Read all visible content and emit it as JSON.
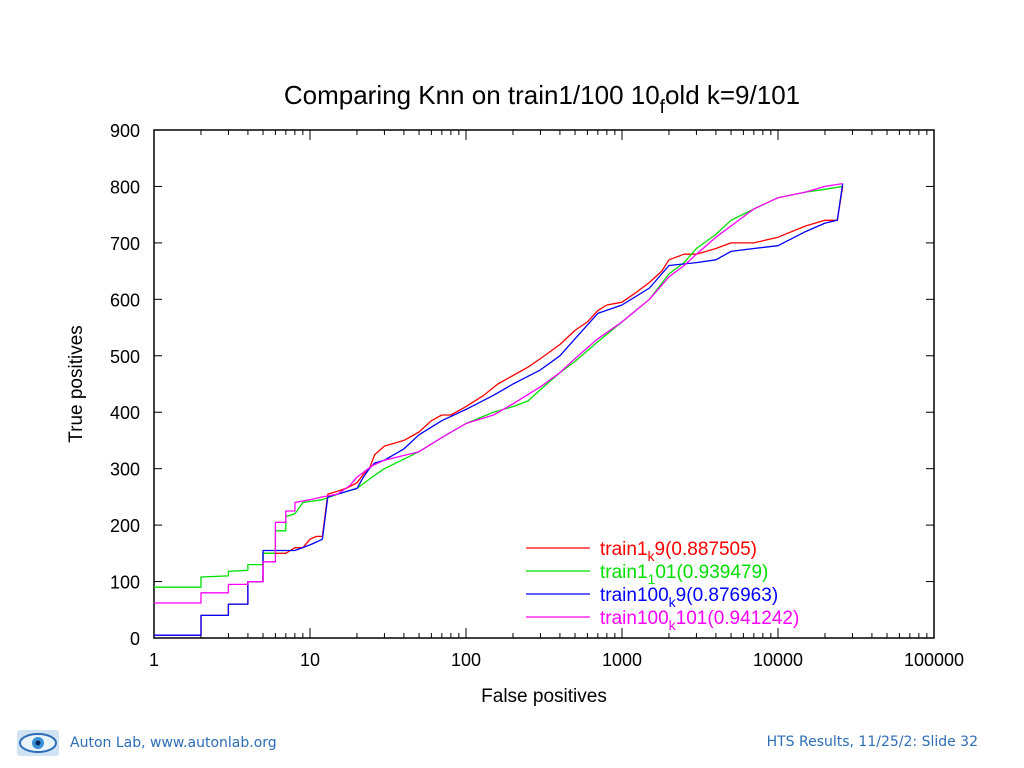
{
  "chart_data": {
    "type": "line",
    "title": {
      "main": "Comparing Knn on train1/100 10",
      "sub": "f",
      "tail": "old k=9/101"
    },
    "xlabel": "False positives",
    "ylabel": "True positives",
    "xscale": "log",
    "xlim": [
      1,
      100000
    ],
    "ylim": [
      0,
      900
    ],
    "xticks": [
      "1",
      "10",
      "100",
      "1000",
      "10000",
      "100000"
    ],
    "yticks": [
      "0",
      "100",
      "200",
      "300",
      "400",
      "500",
      "600",
      "700",
      "800",
      "900"
    ],
    "legend_position": "bottom-right",
    "series": [
      {
        "name": "train1_k9(0.887505)",
        "label": {
          "main": "train1",
          "sub": "k",
          "tail": "9(0.887505)"
        },
        "color": "#ff0000",
        "points": [
          [
            1,
            5
          ],
          [
            2,
            5
          ],
          [
            2,
            40
          ],
          [
            3,
            40
          ],
          [
            3,
            60
          ],
          [
            4,
            60
          ],
          [
            4,
            100
          ],
          [
            5,
            100
          ],
          [
            5,
            150
          ],
          [
            7,
            150
          ],
          [
            8,
            160
          ],
          [
            9,
            160
          ],
          [
            10,
            175
          ],
          [
            11,
            180
          ],
          [
            12,
            180
          ],
          [
            13,
            255
          ],
          [
            15,
            260
          ],
          [
            17,
            265
          ],
          [
            20,
            275
          ],
          [
            22,
            290
          ],
          [
            24,
            300
          ],
          [
            26,
            325
          ],
          [
            30,
            340
          ],
          [
            40,
            350
          ],
          [
            50,
            365
          ],
          [
            60,
            385
          ],
          [
            70,
            395
          ],
          [
            80,
            395
          ],
          [
            100,
            410
          ],
          [
            130,
            430
          ],
          [
            160,
            450
          ],
          [
            200,
            465
          ],
          [
            250,
            480
          ],
          [
            300,
            495
          ],
          [
            400,
            520
          ],
          [
            500,
            545
          ],
          [
            600,
            560
          ],
          [
            700,
            580
          ],
          [
            800,
            590
          ],
          [
            1000,
            595
          ],
          [
            1200,
            610
          ],
          [
            1500,
            630
          ],
          [
            1800,
            650
          ],
          [
            2000,
            670
          ],
          [
            2500,
            680
          ],
          [
            3000,
            680
          ],
          [
            4000,
            690
          ],
          [
            5000,
            700
          ],
          [
            7000,
            700
          ],
          [
            10000,
            710
          ],
          [
            15000,
            730
          ],
          [
            20000,
            740
          ],
          [
            24000,
            740
          ],
          [
            26000,
            800
          ]
        ]
      },
      {
        "name": "train1_1 01(0.939479)",
        "label": {
          "main": "train1",
          "sub": "1",
          "tail": "01(0.939479)"
        },
        "color": "#00e000",
        "points": [
          [
            1,
            90
          ],
          [
            2,
            90
          ],
          [
            2,
            108
          ],
          [
            3,
            110
          ],
          [
            3,
            118
          ],
          [
            4,
            120
          ],
          [
            4,
            130
          ],
          [
            5,
            130
          ],
          [
            5,
            150
          ],
          [
            6,
            150
          ],
          [
            6,
            190
          ],
          [
            7,
            190
          ],
          [
            7,
            215
          ],
          [
            8,
            220
          ],
          [
            9,
            240
          ],
          [
            12,
            245
          ],
          [
            15,
            255
          ],
          [
            20,
            265
          ],
          [
            25,
            285
          ],
          [
            30,
            300
          ],
          [
            50,
            330
          ],
          [
            70,
            355
          ],
          [
            100,
            380
          ],
          [
            150,
            400
          ],
          [
            200,
            410
          ],
          [
            250,
            420
          ],
          [
            300,
            440
          ],
          [
            400,
            470
          ],
          [
            500,
            490
          ],
          [
            700,
            525
          ],
          [
            1000,
            560
          ],
          [
            1500,
            600
          ],
          [
            2000,
            645
          ],
          [
            2500,
            665
          ],
          [
            3000,
            690
          ],
          [
            4000,
            715
          ],
          [
            5000,
            740
          ],
          [
            7000,
            760
          ],
          [
            10000,
            780
          ],
          [
            15000,
            790
          ],
          [
            20000,
            795
          ],
          [
            26000,
            800
          ]
        ]
      },
      {
        "name": "train100_k9(0.876963)",
        "label": {
          "main": "train100",
          "sub": "k",
          "tail": "9(0.876963)"
        },
        "color": "#0000ff",
        "points": [
          [
            1,
            5
          ],
          [
            2,
            5
          ],
          [
            2,
            40
          ],
          [
            3,
            40
          ],
          [
            3,
            60
          ],
          [
            4,
            60
          ],
          [
            4,
            100
          ],
          [
            5,
            100
          ],
          [
            5,
            155
          ],
          [
            7,
            155
          ],
          [
            8,
            155
          ],
          [
            10,
            165
          ],
          [
            11,
            170
          ],
          [
            12,
            175
          ],
          [
            13,
            250
          ],
          [
            15,
            255
          ],
          [
            20,
            265
          ],
          [
            22,
            285
          ],
          [
            24,
            300
          ],
          [
            26,
            310
          ],
          [
            30,
            315
          ],
          [
            40,
            335
          ],
          [
            50,
            360
          ],
          [
            70,
            385
          ],
          [
            100,
            405
          ],
          [
            150,
            430
          ],
          [
            200,
            450
          ],
          [
            300,
            475
          ],
          [
            400,
            500
          ],
          [
            500,
            530
          ],
          [
            700,
            575
          ],
          [
            1000,
            590
          ],
          [
            1500,
            620
          ],
          [
            2000,
            660
          ],
          [
            3000,
            665
          ],
          [
            4000,
            670
          ],
          [
            5000,
            685
          ],
          [
            7000,
            690
          ],
          [
            10000,
            695
          ],
          [
            15000,
            720
          ],
          [
            20000,
            735
          ],
          [
            24000,
            740
          ],
          [
            26000,
            805
          ]
        ]
      },
      {
        "name": "train100_k101(0.941242)",
        "label": {
          "main": "train100",
          "sub": "k",
          "tail": "101(0.941242)"
        },
        "color": "#ff00ff",
        "points": [
          [
            1,
            62
          ],
          [
            2,
            62
          ],
          [
            2,
            80
          ],
          [
            3,
            80
          ],
          [
            3,
            95
          ],
          [
            4,
            95
          ],
          [
            4,
            100
          ],
          [
            5,
            100
          ],
          [
            5,
            135
          ],
          [
            6,
            135
          ],
          [
            6,
            205
          ],
          [
            7,
            205
          ],
          [
            7,
            225
          ],
          [
            8,
            225
          ],
          [
            8,
            240
          ],
          [
            10,
            245
          ],
          [
            12,
            250
          ],
          [
            15,
            255
          ],
          [
            18,
            270
          ],
          [
            20,
            285
          ],
          [
            25,
            305
          ],
          [
            30,
            315
          ],
          [
            50,
            330
          ],
          [
            70,
            355
          ],
          [
            100,
            380
          ],
          [
            150,
            395
          ],
          [
            200,
            415
          ],
          [
            300,
            445
          ],
          [
            400,
            470
          ],
          [
            500,
            495
          ],
          [
            700,
            530
          ],
          [
            1000,
            560
          ],
          [
            1500,
            600
          ],
          [
            2000,
            640
          ],
          [
            2500,
            660
          ],
          [
            3000,
            680
          ],
          [
            4000,
            710
          ],
          [
            5000,
            730
          ],
          [
            7000,
            760
          ],
          [
            10000,
            780
          ],
          [
            15000,
            790
          ],
          [
            20000,
            800
          ],
          [
            26000,
            805
          ]
        ]
      }
    ]
  },
  "footer": {
    "left_text": "Auton Lab, www.autonlab.org",
    "right_text": "HTS Results, 11/25/2: Slide 32",
    "logo_icon": "eye-logo-icon"
  }
}
